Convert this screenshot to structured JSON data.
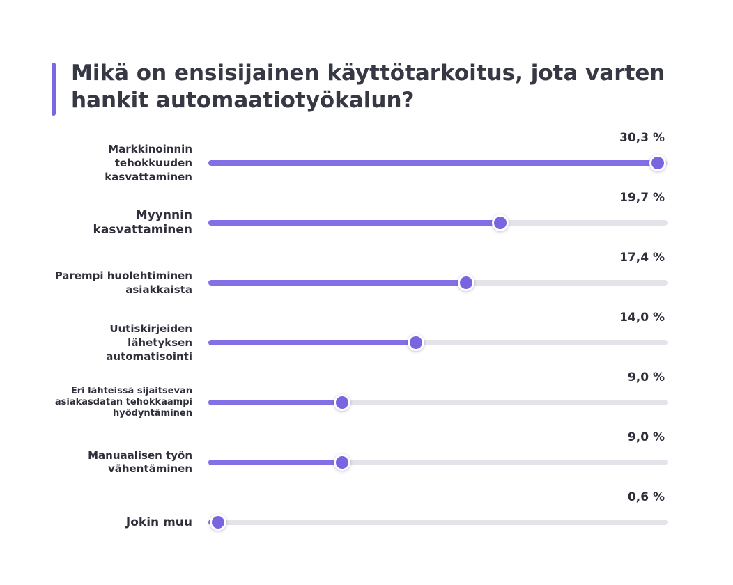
{
  "title": "Mikä on ensisijainen käyttötarkoitus, jota varten hankit automaatiotyökalun?",
  "colors": {
    "accent": "#7b68e0",
    "fill": "#8270e6",
    "track": "#e2e4ea",
    "text": "#2e2f3a"
  },
  "chart_data": {
    "type": "bar",
    "title": "Mikä on ensisijainen käyttötarkoitus, jota varten hankit automaatiotyökalun?",
    "unit": "%",
    "xlim": [
      0,
      30.3
    ],
    "categories": [
      "Markkinoinnin tehokkuuden kasvattaminen",
      "Myynnin kasvattaminen",
      "Parempi huolehtiminen asiakkaista",
      "Uutiskirjeiden lähetyksen automatisointi",
      "Eri lähteissä sijaitsevan asiakasdatan tehokkaampi hyödyntäminen",
      "Manuaalisen työn vähentäminen",
      "Jokin muu"
    ],
    "values": [
      30.3,
      19.7,
      17.4,
      14.0,
      9.0,
      9.0,
      0.6
    ],
    "value_labels": [
      "30,3 %",
      "19,7 %",
      "17,4 %",
      "14,0 %",
      "9,0 %",
      "9,0 %",
      "0,6 %"
    ],
    "display_labels": [
      "Markkinoinnin\ntehokkuuden\nkasvattaminen",
      "Myynnin\nkasvattaminen",
      "Parempi huolehtiminen\nasiakkaista",
      "Uutiskirjeiden\nlähetyksen\nautomatisointi",
      "Eri lähteissä sijaitsevan\nasiakasdatan tehokkaampi\nhyödyntäminen",
      "Manuaalisen työn\nvähentäminen",
      "Jokin muu"
    ]
  }
}
